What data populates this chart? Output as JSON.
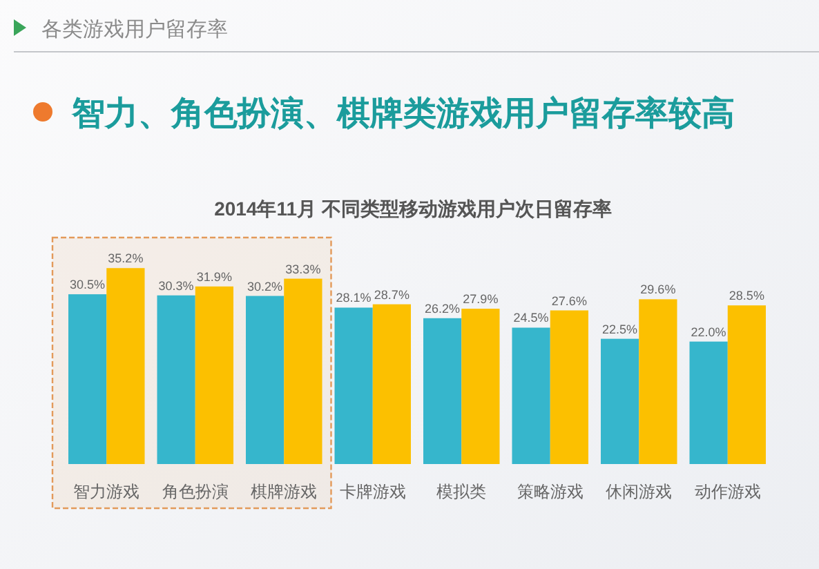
{
  "chart_data": {
    "type": "bar",
    "title": "各类游戏用户留存率",
    "subtitle": "智力、角色扮演、棋牌类游戏用户留存率较高",
    "annotations": [
      "2014年11月 不同类型移动游戏用户次日留存率"
    ],
    "categories": [
      "智力游戏",
      "角色扮演",
      "棋牌游戏",
      "卡牌游戏",
      "模拟类",
      "策略游戏",
      "休闲游戏",
      "动作游戏"
    ],
    "series": [
      {
        "color": "#36b6cc",
        "values": [
          30.5,
          30.3,
          30.2,
          28.1,
          26.2,
          24.5,
          22.5,
          22.0
        ],
        "value_labels": [
          "30.5%",
          "30.3%",
          "30.2%",
          "28.1%",
          "26.2%",
          "24.5%",
          "22.5%",
          "22.0%"
        ]
      },
      {
        "color": "#fcc000",
        "values": [
          35.2,
          31.9,
          33.3,
          28.7,
          27.9,
          27.6,
          29.6,
          28.5
        ],
        "value_labels": [
          "35.2%",
          "31.9%",
          "33.3%",
          "28.7%",
          "27.9%",
          "27.6%",
          "29.6%",
          "28.5%"
        ]
      }
    ],
    "bands": [
      {
        "axis": "x",
        "from": "智力游戏",
        "to": "棋牌游戏",
        "color": "#e39a5a"
      }
    ]
  }
}
